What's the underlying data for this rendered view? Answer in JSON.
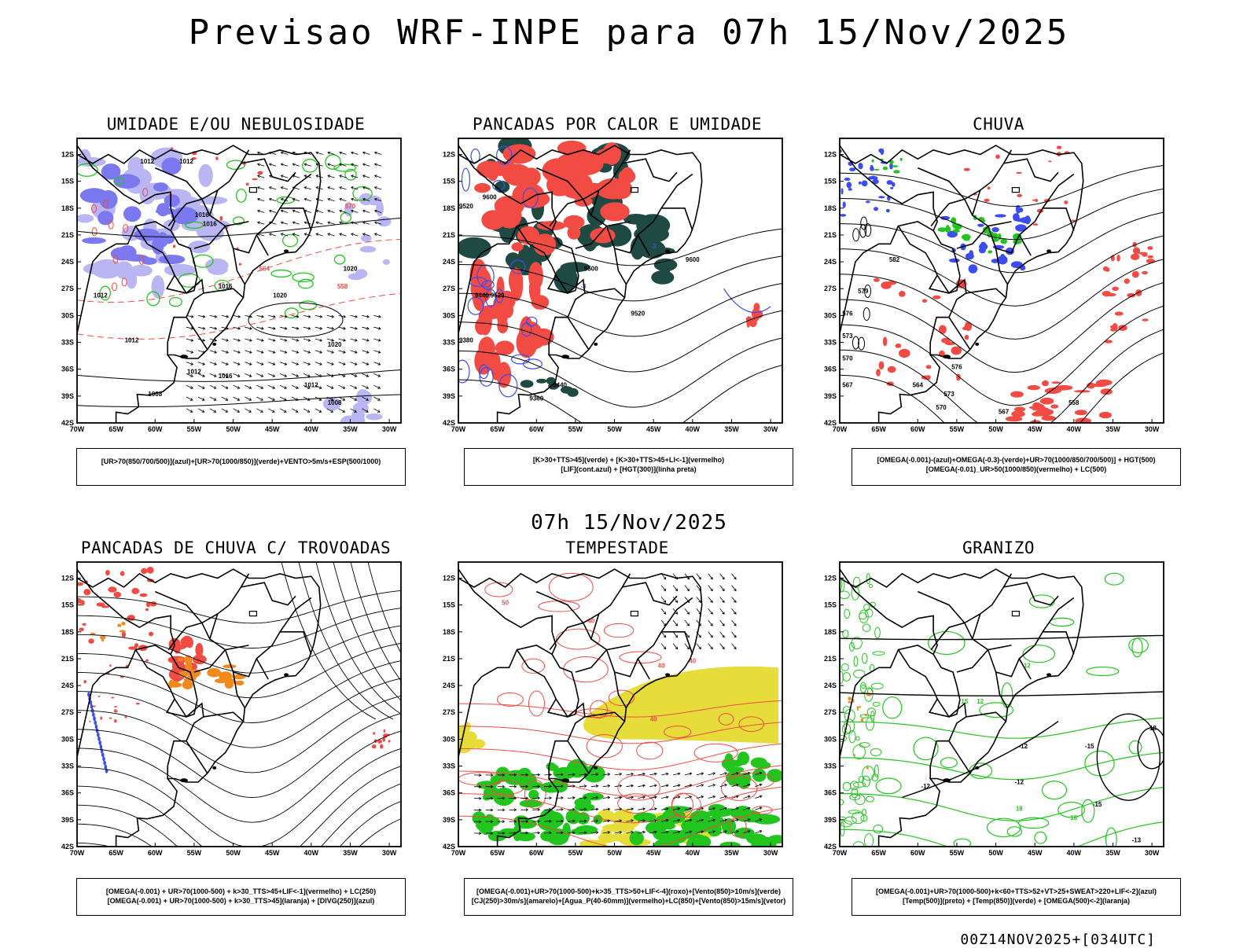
{
  "title": "Previsao WRF-INPE  para 07h 15/Nov/2025",
  "mid_title": "07h 15/Nov/2025",
  "footer": "00Z14NOV2025+[034UTC]",
  "lat_labels": [
    "12S",
    "15S",
    "18S",
    "21S",
    "24S",
    "27S",
    "30S",
    "33S",
    "36S",
    "39S",
    "42S"
  ],
  "lon_labels": [
    "70W",
    "65W",
    "60W",
    "55W",
    "50W",
    "45W",
    "40W",
    "35W",
    "30W"
  ],
  "colors": {
    "blue": "#3b4cf0",
    "light_blue": "#b9b6f3",
    "mid_blue": "#7c78ef",
    "green": "#22c51e",
    "red": "#f24b44",
    "dark_teal": "#1f4a44",
    "orange": "#f08a1c",
    "yellow": "#e6dd3a"
  },
  "panels": [
    {
      "id": "umidade",
      "title": "UMIDADE E/OU NEBULOSIDADE",
      "legend": [
        "[UR>70(850/700/500)](azul)+[UR>70(1000/850)](verde)+VENTO>5m/s+ESP(500/1000)"
      ],
      "contour_labels": [
        "1012",
        "1012",
        "1016",
        "1016",
        "1020",
        "1020",
        "1012",
        "1016",
        "1012",
        "1012",
        "1008",
        "1012",
        "1016",
        "1020",
        "1008",
        "570",
        "564",
        "558"
      ]
    },
    {
      "id": "pancadas_calor",
      "title": "PANCADAS POR CALOR E UMIDADE",
      "legend": [
        "[K>30+TTS>45](verde) + [K>30+TTS>45+LI<-1](vermelho)",
        "[LIF](cont.azul) + [HGT(300)](linha preta)"
      ],
      "contour_labels": [
        "9600",
        "9520",
        "9500",
        "9600",
        "9440",
        "9520",
        "9520",
        "9380",
        "9440",
        "9360",
        "-3",
        "-3"
      ]
    },
    {
      "id": "chuva",
      "title": "CHUVA",
      "legend": [
        "[OMEGA(-0.001)-(azul)+OMEGA(-0.3)-(verde)+UR>70(1000/850/700/500)] + HGT(500)",
        "[OMEGA(-0.01)_UR>50(1000/850)(vermelho) + LC(500)"
      ],
      "contour_labels": [
        "582",
        "579",
        "576",
        "573",
        "570",
        "567",
        "564",
        "576",
        "573",
        "570",
        "567",
        "558"
      ]
    },
    {
      "id": "pancadas_trovoadas",
      "title": "PANCADAS DE CHUVA C/ TROVOADAS",
      "legend": [
        "[OMEGA(-0.001) + UR>70(1000-500) + k>30_TTS>45+LIF<-1](vermelho) + LC(250)",
        "[OMEGA(-0.001) + UR>70(1000-500) + k>30_TTS>45](laranja) + [DIVG(250)](azul)"
      ],
      "contour_labels": []
    },
    {
      "id": "tempestade",
      "title": "TEMPESTADE",
      "legend": [
        "[OMEGA(-0.001)+UR>70(1000-500)+k>35_TTS>50+LIF<-4](roxo)+[Vento(850)>10m/s](verde)",
        "[CJ(250)>30m/s](amarelo)+[Agua_P(40-60mm)](vermelho)+LC(850)+[Vento(850)>15m/s](vetor)"
      ],
      "contour_labels": [
        "40",
        "40",
        "40",
        "50",
        "40"
      ]
    },
    {
      "id": "granizo",
      "title": "GRANIZO",
      "legend": [
        "[OMEGA(-0.001)+UR>70(1000-500)+k<60+TTS>52+VT>25+SWEAT>220+LIF<-2](azul)",
        "[Temp(500)](preto) + [Temp(850)](verde) + [OMEGA(500)<-2](laranja)"
      ],
      "contour_labels": [
        "-12",
        "-12",
        "-15",
        "-15",
        "-12",
        "-18",
        "12",
        "12",
        "15",
        "18",
        "18",
        "-13"
      ]
    }
  ]
}
